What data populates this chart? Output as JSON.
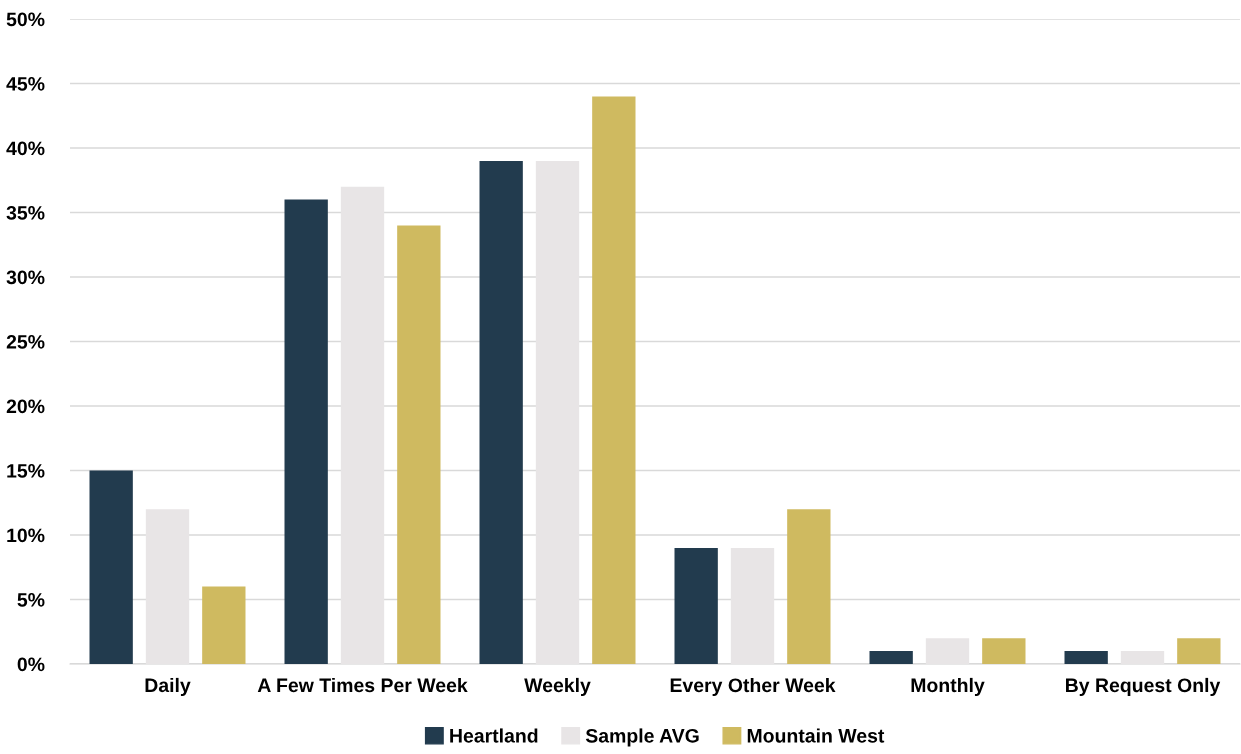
{
  "chart_data": {
    "type": "bar",
    "categories": [
      "Daily",
      "A Few Times Per Week",
      "Weekly",
      "Every Other Week",
      "Monthly",
      "By Request Only"
    ],
    "series": [
      {
        "name": "Heartland",
        "color": "#223b4e",
        "values": [
          15,
          36,
          39,
          9,
          1,
          1
        ]
      },
      {
        "name": "Sample AVG",
        "color": "#e8e5e6",
        "values": [
          12,
          37,
          39,
          9,
          2,
          1
        ]
      },
      {
        "name": "Mountain West",
        "color": "#cfba60",
        "values": [
          6,
          34,
          44,
          12,
          2,
          2
        ]
      }
    ],
    "ylim": [
      0,
      50
    ],
    "yticks": [
      {
        "value": 0,
        "label": "0%"
      },
      {
        "value": 5,
        "label": "5%"
      },
      {
        "value": 10,
        "label": "10%"
      },
      {
        "value": 15,
        "label": "15%"
      },
      {
        "value": 20,
        "label": "20%"
      },
      {
        "value": 25,
        "label": "25%"
      },
      {
        "value": 30,
        "label": "30%"
      },
      {
        "value": 35,
        "label": "35%"
      },
      {
        "value": 40,
        "label": "40%"
      },
      {
        "value": 45,
        "label": "45%"
      },
      {
        "value": 50,
        "label": "50%"
      }
    ],
    "grid": "y",
    "legend": "bottom"
  }
}
